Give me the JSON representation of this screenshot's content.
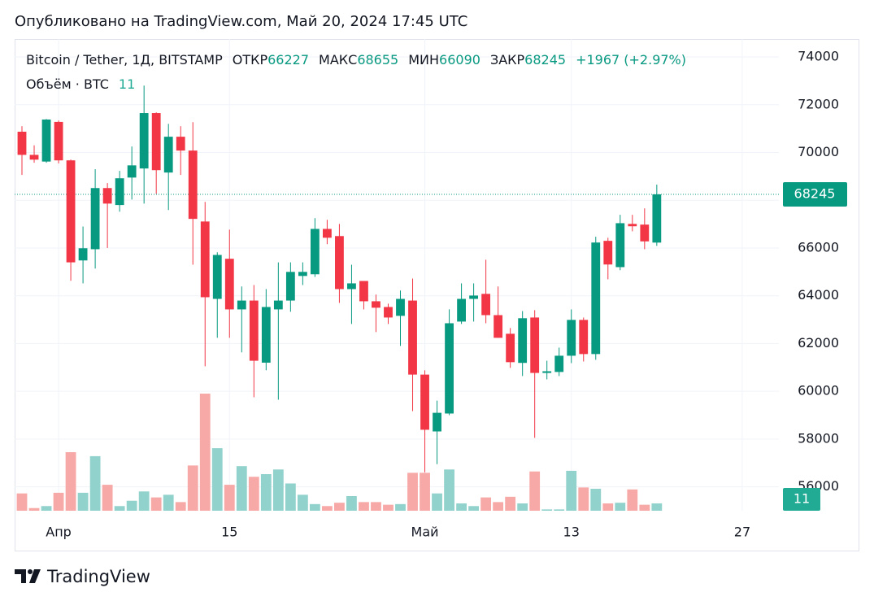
{
  "header": {
    "published": "Опубликовано на TradingView.com, Май 20, 2024 17:45 UTC",
    "brand": "TradingView"
  },
  "chart_data": {
    "type": "candlestick",
    "symbol": "Bitcoin / Tether, 1Д, BITSTAMP",
    "open_label": "ОТКР",
    "high_label": "МАКС",
    "low_label": "МИН",
    "close_label": "ЗАКР",
    "change": "+1967 (+2.97%)",
    "volume_label": "Объём · BTC",
    "up_color": "#089981",
    "down_color": "#f23645",
    "volume_up_color": "#92d2cc",
    "volume_down_color": "#f7a9a7",
    "open": [
      70870,
      69900,
      69620,
      71280,
      69670,
      65480,
      65950,
      68510,
      67800,
      68950,
      69330,
      71650,
      69160,
      70660,
      70080,
      67110,
      63870,
      65550,
      63430,
      63800,
      61200,
      63430,
      63800,
      64830,
      64900,
      66800,
      66500,
      64280,
      64620,
      63770,
      63530,
      63160,
      63800,
      60700,
      58320,
      59070,
      62920,
      63870,
      64080,
      63190,
      62410,
      61190,
      63090,
      60770,
      60810,
      61490,
      62990,
      61560,
      66300,
      65200,
      67010,
      66980,
      66227
    ],
    "high": [
      71100,
      70300,
      71400,
      71340,
      69700,
      66900,
      69300,
      68720,
      69230,
      70250,
      72800,
      71680,
      71200,
      71100,
      71270,
      67930,
      65820,
      66770,
      64390,
      64450,
      64280,
      65400,
      65400,
      65400,
      67250,
      67180,
      67010,
      65300,
      64620,
      64050,
      63670,
      64220,
      64720,
      60880,
      59610,
      63430,
      64520,
      64520,
      65510,
      64390,
      62650,
      63360,
      63400,
      61280,
      61830,
      63430,
      63090,
      66470,
      66430,
      67390,
      67390,
      67660,
      68655
    ],
    "low": [
      69060,
      69570,
      69570,
      69540,
      64630,
      64520,
      65140,
      66000,
      67520,
      68030,
      67860,
      68270,
      67590,
      69060,
      65300,
      61050,
      62240,
      62240,
      61630,
      59750,
      60880,
      59650,
      63330,
      64450,
      64790,
      66160,
      63700,
      62820,
      63430,
      62480,
      62820,
      61900,
      59170,
      56610,
      56950,
      59000,
      62820,
      62920,
      62850,
      62240,
      60980,
      60640,
      58050,
      60500,
      60640,
      61180,
      61250,
      61320,
      64690,
      65070,
      66700,
      65950,
      66090
    ],
    "close": [
      69900,
      69700,
      71380,
      69670,
      65400,
      65990,
      68510,
      67860,
      68920,
      69460,
      71650,
      69260,
      70660,
      70080,
      67220,
      63940,
      65710,
      63430,
      63800,
      61280,
      63530,
      63800,
      65000,
      65000,
      66800,
      66430,
      64280,
      64520,
      63770,
      63500,
      63090,
      63870,
      60700,
      58390,
      59100,
      62850,
      63870,
      64010,
      63190,
      62240,
      61220,
      63060,
      60770,
      60840,
      61490,
      62990,
      61560,
      66230,
      65310,
      67040,
      66910,
      66278,
      68245
    ],
    "volume": [
      26,
      4,
      7,
      27,
      88,
      27,
      82,
      39,
      7,
      15,
      29,
      20,
      24,
      13,
      68,
      176,
      94,
      39,
      67,
      51,
      55,
      62,
      41,
      24,
      10,
      7,
      12,
      22,
      13,
      13,
      9,
      10,
      57,
      57,
      26,
      62,
      11,
      7,
      20,
      13,
      21,
      11,
      59,
      2,
      2,
      60,
      35,
      33,
      11,
      12,
      32,
      9,
      11
    ],
    "xlim": [
      -0.6,
      62
    ],
    "xticks": [
      {
        "value": 3,
        "label": "Апр"
      },
      {
        "value": 17,
        "label": "15"
      },
      {
        "value": 33,
        "label": "Май"
      },
      {
        "value": 45,
        "label": "13"
      },
      {
        "value": 59,
        "label": "27"
      }
    ],
    "ylim": [
      55000,
      74750
    ],
    "yticks": [
      56000,
      58000,
      60000,
      62000,
      64000,
      66000,
      68000,
      70000,
      72000,
      74000
    ],
    "grid": true
  }
}
